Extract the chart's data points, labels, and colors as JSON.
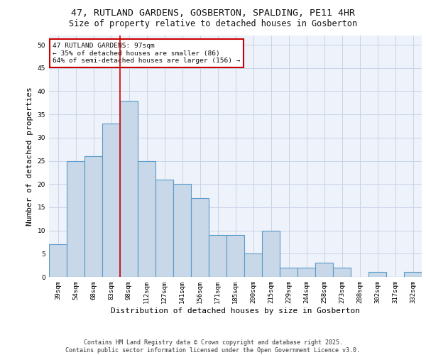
{
  "title_line1": "47, RUTLAND GARDENS, GOSBERTON, SPALDING, PE11 4HR",
  "title_line2": "Size of property relative to detached houses in Gosberton",
  "xlabel": "Distribution of detached houses by size in Gosberton",
  "ylabel": "Number of detached properties",
  "categories": [
    "39sqm",
    "54sqm",
    "68sqm",
    "83sqm",
    "98sqm",
    "112sqm",
    "127sqm",
    "141sqm",
    "156sqm",
    "171sqm",
    "185sqm",
    "200sqm",
    "215sqm",
    "229sqm",
    "244sqm",
    "258sqm",
    "273sqm",
    "288sqm",
    "302sqm",
    "317sqm",
    "332sqm"
  ],
  "values": [
    7,
    25,
    26,
    33,
    38,
    25,
    21,
    20,
    17,
    9,
    9,
    5,
    10,
    2,
    2,
    3,
    2,
    0,
    1,
    0,
    1
  ],
  "bar_color": "#c8d8e8",
  "bar_edge_color": "#5a9ac8",
  "bar_edge_width": 0.8,
  "grid_color": "#c8d4e8",
  "background_color": "#eef2fa",
  "red_line_x": 3.5,
  "annotation_text": "47 RUTLAND GARDENS: 97sqm\n← 35% of detached houses are smaller (86)\n64% of semi-detached houses are larger (156) →",
  "annotation_box_color": "#ffffff",
  "annotation_box_edge": "#cc0000",
  "footer_line1": "Contains HM Land Registry data © Crown copyright and database right 2025.",
  "footer_line2": "Contains public sector information licensed under the Open Government Licence v3.0.",
  "ylim": [
    0,
    52
  ],
  "yticks": [
    0,
    5,
    10,
    15,
    20,
    25,
    30,
    35,
    40,
    45,
    50
  ],
  "title_fontsize": 9.5,
  "subtitle_fontsize": 8.5,
  "axis_label_fontsize": 8,
  "tick_fontsize": 6.5,
  "annotation_fontsize": 6.8,
  "footer_fontsize": 6
}
